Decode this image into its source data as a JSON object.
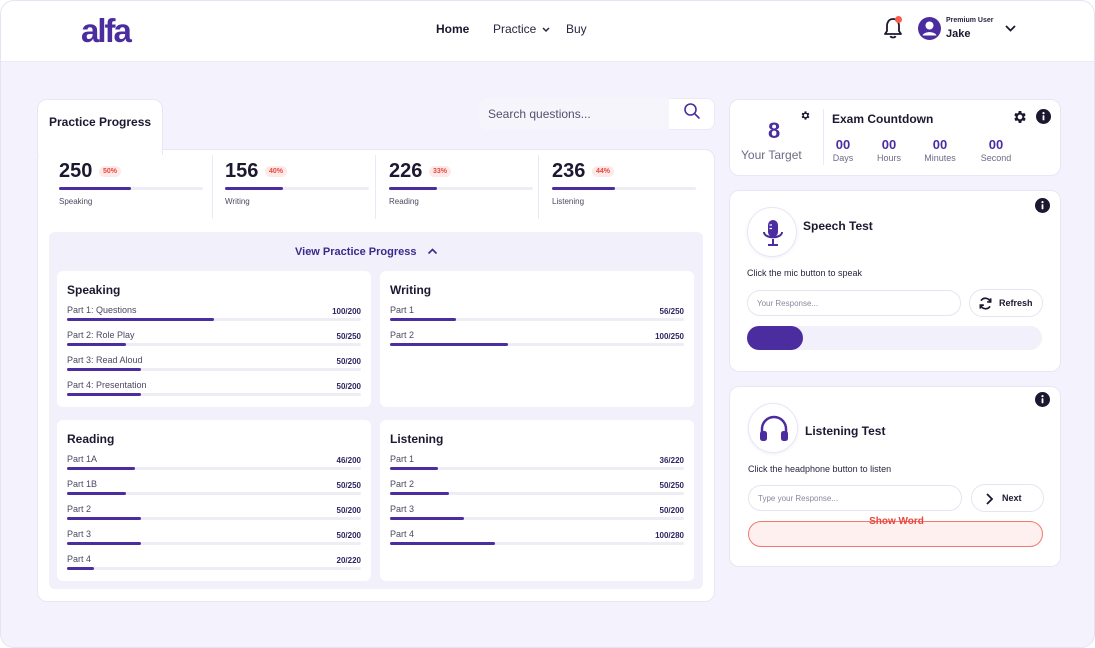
{
  "brand": {
    "logo_text": "alfa",
    "accent": "#4b2d9f",
    "danger": "#e8473c"
  },
  "nav": {
    "items": [
      {
        "label": "Home"
      },
      {
        "label": "Practice"
      },
      {
        "label": "Buy"
      }
    ]
  },
  "user": {
    "role": "Premium User",
    "name": "Jake"
  },
  "tab": {
    "label": "Practice Progress"
  },
  "search": {
    "placeholder": "Search questions..."
  },
  "stats": [
    {
      "value": "250",
      "badge": "50%",
      "label": "Speaking",
      "fraction": 0.5
    },
    {
      "value": "156",
      "badge": "40%",
      "label": "Writing",
      "fraction": 0.4
    },
    {
      "value": "226",
      "badge": "33%",
      "label": "Reading",
      "fraction": 0.33
    },
    {
      "value": "236",
      "badge": "44%",
      "label": "Listening",
      "fraction": 0.44
    }
  ],
  "view_progress": {
    "label": "View Practice Progress"
  },
  "sections": {
    "speaking": {
      "title": "Speaking",
      "parts": [
        {
          "label": "Part 1: Questions",
          "value": "100/200",
          "fraction": 0.5
        },
        {
          "label": "Part 2: Role Play",
          "value": "50/250",
          "fraction": 0.2
        },
        {
          "label": "Part 3: Read Aloud",
          "value": "50/200",
          "fraction": 0.25
        },
        {
          "label": "Part 4: Presentation",
          "value": "50/200",
          "fraction": 0.25
        }
      ]
    },
    "writing": {
      "title": "Writing",
      "parts": [
        {
          "label": "Part 1",
          "value": "56/250",
          "fraction": 0.224
        },
        {
          "label": "Part 2",
          "value": "100/250",
          "fraction": 0.4
        }
      ]
    },
    "reading": {
      "title": "Reading",
      "parts": [
        {
          "label": "Part 1A",
          "value": "46/200",
          "fraction": 0.23
        },
        {
          "label": "Part 1B",
          "value": "50/250",
          "fraction": 0.2
        },
        {
          "label": "Part 2",
          "value": "50/200",
          "fraction": 0.25
        },
        {
          "label": "Part 3",
          "value": "50/200",
          "fraction": 0.25
        },
        {
          "label": "Part 4",
          "value": "20/220",
          "fraction": 0.091
        }
      ]
    },
    "listening": {
      "title": "Listening",
      "parts": [
        {
          "label": "Part 1",
          "value": "36/220",
          "fraction": 0.164
        },
        {
          "label": "Part 2",
          "value": "50/250",
          "fraction": 0.2
        },
        {
          "label": "Part 3",
          "value": "50/200",
          "fraction": 0.25
        },
        {
          "label": "Part 4",
          "value": "100/280",
          "fraction": 0.357
        }
      ]
    }
  },
  "target": {
    "value": "8",
    "label": "Your Target"
  },
  "countdown": {
    "title": "Exam Countdown",
    "units": [
      {
        "value": "00",
        "label": "Days"
      },
      {
        "value": "00",
        "label": "Hours"
      },
      {
        "value": "00",
        "label": "Minutes"
      },
      {
        "value": "00",
        "label": "Second"
      }
    ]
  },
  "speech_test": {
    "title": "Speech Test",
    "hint": "Click the mic button to speak",
    "placeholder": "Your Response...",
    "refresh_label": "Refresh",
    "progress": 0.19
  },
  "listening_test": {
    "title": "Listening Test",
    "hint": "Click the headphone button to listen",
    "placeholder": "Type your Response...",
    "next_label": "Next",
    "show_word_label": "Show Word"
  }
}
